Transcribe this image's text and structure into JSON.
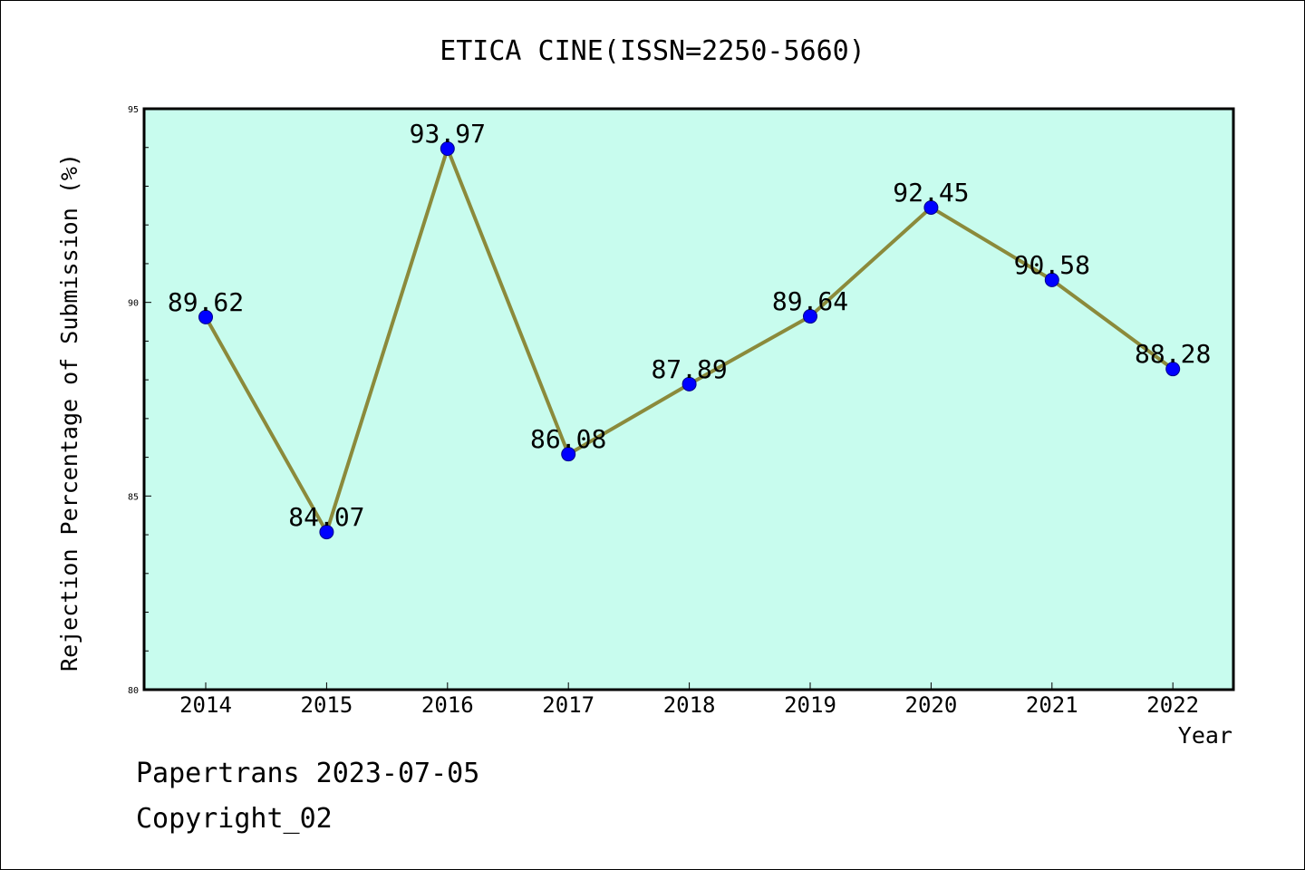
{
  "chart_data": {
    "type": "line",
    "title": "ETICA CINE(ISSN=2250-5660)",
    "xlabel": "Year",
    "ylabel": "Rejection Percentage of Submission (%)",
    "categories": [
      "2014",
      "2015",
      "2016",
      "2017",
      "2018",
      "2019",
      "2020",
      "2021",
      "2022"
    ],
    "series": [
      {
        "values": [
          89.62,
          84.07,
          93.97,
          86.08,
          87.89,
          89.64,
          92.45,
          90.58,
          88.28
        ]
      }
    ],
    "data_labels": [
      "89.62",
      "84.07",
      "93.97",
      "86.08",
      "87.89",
      "89.64",
      "92.45",
      "90.58",
      "88.28"
    ],
    "ylim": [
      80,
      95
    ],
    "yticks": [
      "80",
      "85",
      "90",
      "95"
    ],
    "grid": false,
    "colors": {
      "plot_background": "#c8fcee",
      "line": "#8b8a3b",
      "marker": "#0000ff"
    }
  },
  "footer": {
    "line1": "Papertrans 2023-07-05",
    "line2": "Copyright_02"
  }
}
